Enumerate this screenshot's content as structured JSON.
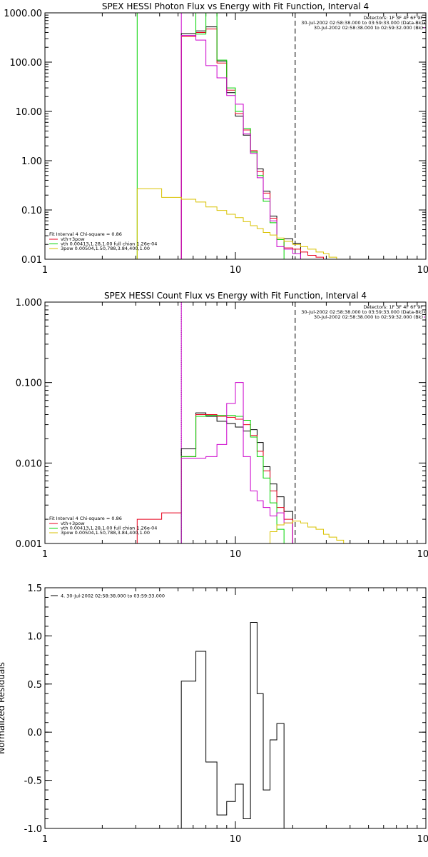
{
  "chart_data": [
    {
      "type": "line",
      "title": "SPEX HESSI Photon Flux vs Energy with Fit Function, Interval 4",
      "xlabel": "",
      "ylabel": "",
      "xscale": "log",
      "yscale": "log",
      "xlim": [
        1,
        100
      ],
      "ylim": [
        0.01,
        1000
      ],
      "xticks": [
        "1",
        "10",
        "100"
      ],
      "yticks": [
        "0.01",
        "0.10",
        "1.00",
        "10.00",
        "100.00",
        "1000.00"
      ],
      "info_lines": [
        "Detectors: 1F 3F 4F 6F 9F",
        "30-Jul-2002 02:58:38.000 to 03:59:33.000 (Data-Bk)",
        "30-Jul-2002 02:58:38.000 to 02:59:32.000 (Bk)"
      ],
      "fit_info": {
        "header": "Fit Interval  4    Chi-square = 0.86",
        "lines": [
          {
            "label": "vth+3pow",
            "color": "#e8001c"
          },
          {
            "label": "vth 0.00413,1.28,1.00  full chian 1.26e-04",
            "color": "#00d400"
          },
          {
            "label": "3pow 0.00504,1.50,788,3.84,400,1.00",
            "color": "#d9c200"
          }
        ]
      },
      "vlines": [
        {
          "x": 5.2,
          "style": "solid",
          "color": "#cc00cc"
        },
        {
          "x": 20.6,
          "style": "dashed",
          "color": "#000000"
        }
      ],
      "series": [
        {
          "name": "",
          "color": "#000000",
          "values": [
            [
              5.2,
              380
            ],
            [
              6.2,
              430
            ],
            [
              7,
              520
            ],
            [
              8,
              105
            ],
            [
              9,
              24
            ],
            [
              10,
              8
            ],
            [
              11,
              3.3
            ],
            [
              12,
              1.5
            ],
            [
              13,
              0.68
            ],
            [
              14,
              0.24
            ],
            [
              15.2,
              0.075
            ],
            [
              16.5,
              0.025
            ],
            [
              18,
              0.026
            ],
            [
              20,
              0.021
            ]
          ]
        },
        {
          "name": "",
          "color": "#e8001c",
          "values": [
            [
              5.2,
              330
            ],
            [
              6.2,
              400
            ],
            [
              7,
              470
            ],
            [
              8,
              96
            ],
            [
              9,
              27
            ],
            [
              10,
              9
            ],
            [
              11,
              4.2
            ],
            [
              12,
              1.6
            ],
            [
              13,
              0.6
            ],
            [
              14,
              0.22
            ],
            [
              15.2,
              0.068
            ],
            [
              16.5,
              0.025
            ],
            [
              18,
              0.017
            ],
            [
              20,
              0.016
            ],
            [
              22,
              0.014
            ],
            [
              24,
              0.012
            ],
            [
              26.5,
              0.011
            ],
            [
              29,
              0.01
            ]
          ]
        },
        {
          "name": "",
          "color": "#00d400",
          "values": [
            [
              3.05,
              1000
            ],
            [
              5.2,
              1000
            ],
            [
              6.2,
              370
            ],
            [
              7,
              1000
            ],
            [
              8,
              110
            ],
            [
              9,
              30
            ],
            [
              10,
              10
            ],
            [
              11,
              4.5
            ],
            [
              12,
              1.5
            ],
            [
              13,
              0.5
            ],
            [
              14,
              0.15
            ],
            [
              15.2,
              0.055
            ],
            [
              16.5,
              0.025
            ],
            [
              18,
              0.01
            ]
          ]
        },
        {
          "name": "",
          "color": "#cc00cc",
          "values": [
            [
              5.2,
              350
            ],
            [
              6.2,
              280
            ],
            [
              7,
              85
            ],
            [
              8,
              48
            ],
            [
              9,
              21
            ],
            [
              10,
              14
            ],
            [
              11,
              3.5
            ],
            [
              12,
              1.4
            ],
            [
              13,
              0.45
            ],
            [
              14,
              0.17
            ],
            [
              15.2,
              0.06
            ],
            [
              16.5,
              0.018
            ],
            [
              18,
              0.016
            ],
            [
              20,
              0.013
            ]
          ]
        },
        {
          "name": "",
          "color": "#d9c200",
          "values": [
            [
              3.05,
              0.27
            ],
            [
              4.1,
              0.18
            ],
            [
              5.2,
              0.165
            ],
            [
              6.2,
              0.145
            ],
            [
              7,
              0.115
            ],
            [
              8,
              0.098
            ],
            [
              9,
              0.082
            ],
            [
              10,
              0.07
            ],
            [
              11,
              0.058
            ],
            [
              12,
              0.048
            ],
            [
              13,
              0.042
            ],
            [
              14,
              0.035
            ],
            [
              15.2,
              0.031
            ],
            [
              16.5,
              0.027
            ],
            [
              18,
              0.023
            ],
            [
              20,
              0.02
            ],
            [
              22,
              0.018
            ],
            [
              24,
              0.016
            ],
            [
              26.5,
              0.014
            ],
            [
              29,
              0.013
            ],
            [
              31,
              0.011
            ],
            [
              34,
              0.01
            ]
          ]
        }
      ]
    },
    {
      "type": "line",
      "title": "SPEX HESSI Count Flux vs Energy with Fit Function, Interval 4",
      "xlabel": "",
      "ylabel": "",
      "xscale": "log",
      "yscale": "log",
      "xlim": [
        1,
        100
      ],
      "ylim": [
        0.001,
        1
      ],
      "xticks": [
        "1",
        "10",
        "100"
      ],
      "yticks": [
        "0.001",
        "0.010",
        "0.100",
        "1.000"
      ],
      "info_lines": [
        "Detectors: 1F 3F 4F 6F 9F",
        "30-Jul-2002 02:58:38.000 to 03:59:33.000 (Data-Bk)",
        "30-Jul-2002 02:58:38.000 to 02:59:32.000 (Bk)"
      ],
      "fit_info": {
        "header": "Fit Interval  4    Chi-square = 0.86",
        "lines": [
          {
            "label": "vth+3pow",
            "color": "#e8001c"
          },
          {
            "label": "vth 0.00413,1.28,1.00  full chian 1.26e-04",
            "color": "#00d400"
          },
          {
            "label": "3pow 0.00504,1.50,788,3.84,400,1.00",
            "color": "#d9c200"
          }
        ]
      },
      "vlines": [
        {
          "x": 5.2,
          "style": "dotted",
          "color": "#000000"
        },
        {
          "x": 5.2,
          "style": "solid",
          "color": "#cc00cc"
        },
        {
          "x": 20.6,
          "style": "dashed",
          "color": "#000000"
        }
      ],
      "series": [
        {
          "name": "",
          "color": "#000000",
          "values": [
            [
              5.2,
              0.015
            ],
            [
              6.2,
              0.042
            ],
            [
              7,
              0.038
            ],
            [
              8,
              0.033
            ],
            [
              9,
              0.031
            ],
            [
              10,
              0.028
            ],
            [
              11,
              0.025
            ],
            [
              12,
              0.026
            ],
            [
              13,
              0.018
            ],
            [
              14,
              0.009
            ],
            [
              15.2,
              0.0055
            ],
            [
              16.5,
              0.0038
            ],
            [
              18,
              0.0025
            ],
            [
              20,
              0.001
            ]
          ]
        },
        {
          "name": "",
          "color": "#e8001c",
          "values": [
            [
              3.05,
              0.002
            ],
            [
              4.1,
              0.0024
            ],
            [
              5.2,
              0.012
            ],
            [
              6.2,
              0.04
            ],
            [
              7,
              0.04
            ],
            [
              8,
              0.038
            ],
            [
              9,
              0.037
            ],
            [
              10,
              0.035
            ],
            [
              11,
              0.03
            ],
            [
              12,
              0.022
            ],
            [
              13,
              0.014
            ],
            [
              14,
              0.008
            ],
            [
              15.2,
              0.0045
            ],
            [
              16.5,
              0.0028
            ],
            [
              18,
              0.002
            ],
            [
              20,
              0.001
            ]
          ]
        },
        {
          "name": "",
          "color": "#00d400",
          "values": [
            [
              3.05,
              0.001
            ],
            [
              5.2,
              0.012
            ],
            [
              6.2,
              0.038
            ],
            [
              7,
              0.039
            ],
            [
              8,
              0.039
            ],
            [
              9,
              0.039
            ],
            [
              10,
              0.038
            ],
            [
              11,
              0.034
            ],
            [
              12,
              0.021
            ],
            [
              13,
              0.012
            ],
            [
              14,
              0.0065
            ],
            [
              15.2,
              0.0032
            ],
            [
              16.5,
              0.0015
            ],
            [
              18,
              0.001
            ]
          ]
        },
        {
          "name": "",
          "color": "#cc00cc",
          "values": [
            [
              5.2,
              0.0115
            ],
            [
              6.2,
              0.0115
            ],
            [
              7,
              0.012
            ],
            [
              8,
              0.017
            ],
            [
              9,
              0.055
            ],
            [
              10,
              0.1
            ],
            [
              11,
              0.012
            ],
            [
              12,
              0.0045
            ],
            [
              13,
              0.0034
            ],
            [
              14,
              0.0028
            ],
            [
              15.2,
              0.0022
            ],
            [
              16.5,
              0.0024
            ],
            [
              18,
              0.0018
            ],
            [
              20,
              0.001
            ]
          ]
        },
        {
          "name": "",
          "color": "#d9c200",
          "values": [
            [
              14.5,
              0.001
            ],
            [
              15.2,
              0.0014
            ],
            [
              16.5,
              0.0017
            ],
            [
              18,
              0.0018
            ],
            [
              20,
              0.0019
            ],
            [
              22,
              0.0018
            ],
            [
              24,
              0.0016
            ],
            [
              26.5,
              0.0015
            ],
            [
              29,
              0.0013
            ],
            [
              31,
              0.0012
            ],
            [
              34,
              0.0011
            ],
            [
              37,
              0.001
            ],
            [
              40.5,
              0.001
            ]
          ]
        }
      ]
    },
    {
      "type": "line",
      "title": "",
      "xlabel": "",
      "ylabel": "Normalized Residuals",
      "xscale": "log",
      "yscale": "linear",
      "xlim": [
        1,
        100
      ],
      "ylim": [
        -1.0,
        1.5
      ],
      "xticks": [
        "1",
        "10",
        "100"
      ],
      "yticks": [
        "-1.0",
        "-0.5",
        "0.0",
        "0.5",
        "1.0",
        "1.5"
      ],
      "legend": "4. 30-Jul-2002 02:58:38.000 to 03:59:33.000",
      "series": [
        {
          "name": "4. 30-Jul-2002 02:58:38.000 to 03:59:33.000",
          "color": "#000000",
          "values": [
            [
              5.2,
              0.53
            ],
            [
              6.2,
              0.84
            ],
            [
              7,
              -0.31
            ],
            [
              8,
              -0.86
            ],
            [
              9,
              -0.72
            ],
            [
              10,
              -0.54
            ],
            [
              11,
              -0.9
            ],
            [
              12,
              1.14
            ],
            [
              13,
              0.4
            ],
            [
              14,
              -0.6
            ],
            [
              15.2,
              -0.08
            ],
            [
              16.5,
              0.09
            ],
            [
              18,
              -1.0
            ]
          ]
        }
      ]
    }
  ]
}
